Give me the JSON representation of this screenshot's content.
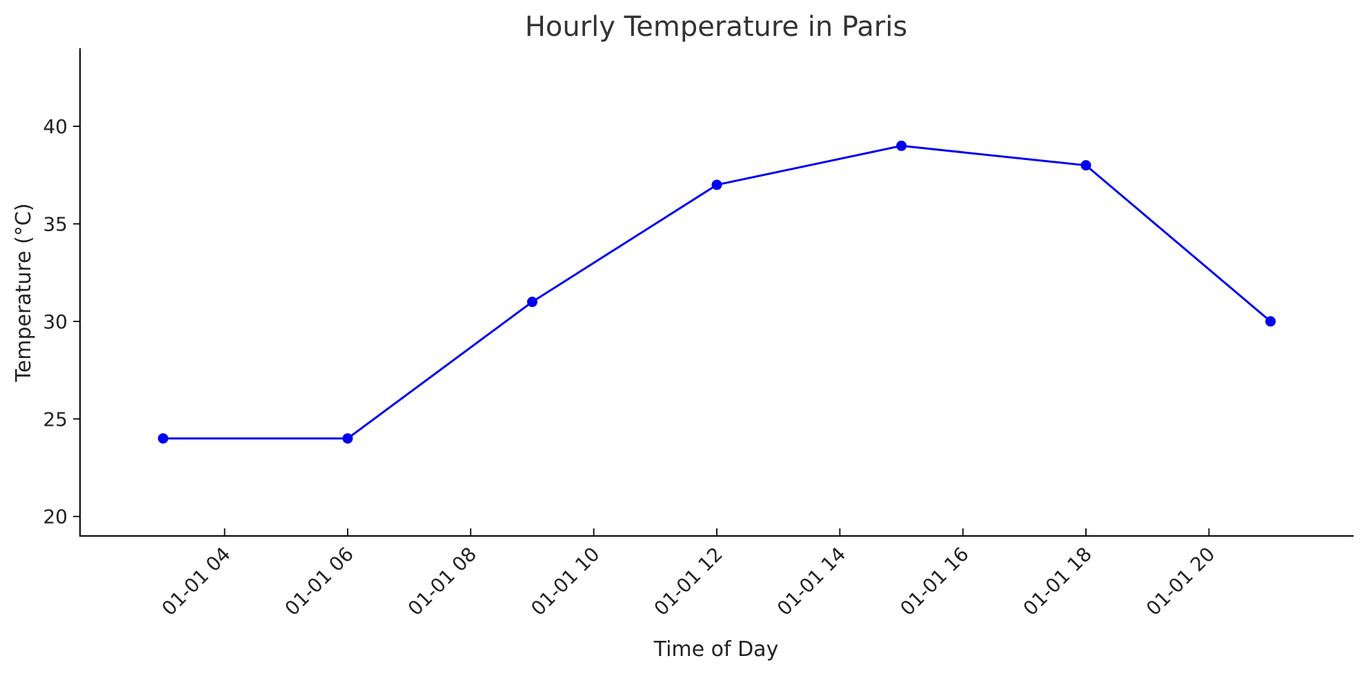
{
  "chart_data": {
    "type": "line",
    "title": "Hourly Temperature in Paris",
    "xlabel": "Time of Day",
    "ylabel": "Temperature (°C)",
    "x": [
      "2024-01-01 03:00",
      "2024-01-01 06:00",
      "2024-01-01 09:00",
      "2024-01-01 12:00",
      "2024-01-01 15:00",
      "2024-01-01 18:00",
      "2024-01-01 21:00"
    ],
    "x_hours": [
      3,
      6,
      9,
      12,
      15,
      18,
      21
    ],
    "series": [
      {
        "values": [
          24,
          24,
          31,
          37,
          39,
          38,
          30
        ],
        "color": "#0000ee"
      }
    ],
    "xlim_hours": [
      1.65,
      22.35
    ],
    "ylim": [
      19,
      44
    ],
    "x_ticks": [
      {
        "hour": 4,
        "label": "01-01 04"
      },
      {
        "hour": 6,
        "label": "01-01 06"
      },
      {
        "hour": 8,
        "label": "01-01 08"
      },
      {
        "hour": 10,
        "label": "01-01 10"
      },
      {
        "hour": 12,
        "label": "01-01 12"
      },
      {
        "hour": 14,
        "label": "01-01 14"
      },
      {
        "hour": 16,
        "label": "01-01 16"
      },
      {
        "hour": 18,
        "label": "01-01 18"
      },
      {
        "hour": 20,
        "label": "01-01 20"
      }
    ],
    "y_ticks": [
      20,
      25,
      30,
      35,
      40
    ],
    "grid": false,
    "legend": "none"
  }
}
